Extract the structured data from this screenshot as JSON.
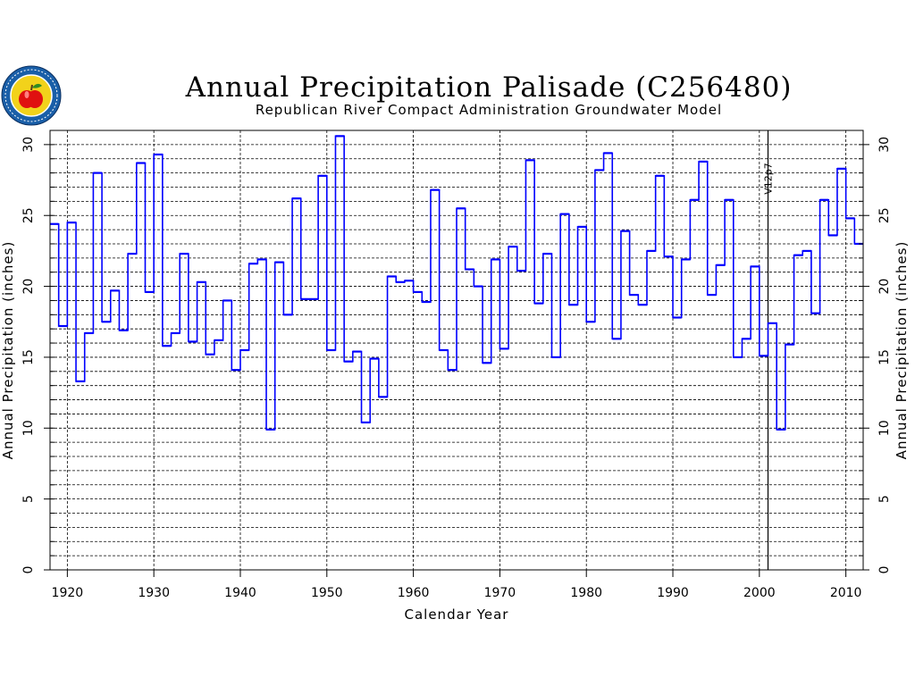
{
  "logo": {
    "icon": "apple-seal-icon",
    "colors": {
      "ring": "#1a5fa8",
      "inner": "#f2d21b",
      "apple": "#e01010",
      "leaf": "#2e8b23"
    }
  },
  "colors": {
    "series": "#0000ff",
    "axis": "#000000",
    "grid": "#000000"
  },
  "chart_data": {
    "type": "line",
    "style": "step",
    "title": "Annual Precipitation Palisade (C256480)",
    "subtitle": "Republican River Compact Administration Groundwater Model",
    "xlabel": "Calendar Year",
    "ylabel": "Annual Precipitation (inches)",
    "ylabel_right": "Annual Precipitation (inches)",
    "xlim": [
      1918,
      2012
    ],
    "ylim": [
      0,
      31
    ],
    "x_ticks": [
      1920,
      1930,
      1940,
      1950,
      1960,
      1970,
      1980,
      1990,
      2000,
      2010
    ],
    "y_ticks": [
      0,
      5,
      10,
      15,
      20,
      25,
      30
    ],
    "y_minor_step": 1,
    "grid": true,
    "marker": {
      "year": 2001,
      "label": "V12p7"
    },
    "series": [
      {
        "x": [
          1918,
          1919,
          1920,
          1921,
          1922,
          1923,
          1924,
          1925,
          1926,
          1927,
          1928,
          1929,
          1930,
          1931,
          1932,
          1933,
          1934,
          1935,
          1936,
          1937,
          1938,
          1939,
          1940,
          1941,
          1942,
          1943,
          1944,
          1945,
          1946,
          1947,
          1948,
          1949,
          1950,
          1951,
          1952,
          1953,
          1954,
          1955,
          1956,
          1957,
          1958,
          1959,
          1960,
          1961,
          1962,
          1963,
          1964,
          1965,
          1966,
          1967,
          1968,
          1969,
          1970,
          1971,
          1972,
          1973,
          1974,
          1975,
          1976,
          1977,
          1978,
          1979,
          1980,
          1981,
          1982,
          1983,
          1984,
          1985,
          1986,
          1987,
          1988,
          1989,
          1990,
          1991,
          1992,
          1993,
          1994,
          1995,
          1996,
          1997,
          1998,
          1999,
          2000,
          2001,
          2002,
          2003,
          2004,
          2005,
          2006,
          2007,
          2008,
          2009,
          2010,
          2011
        ],
        "values": [
          24.4,
          17.2,
          24.5,
          13.3,
          16.7,
          28.0,
          17.5,
          19.7,
          16.9,
          22.3,
          28.7,
          19.6,
          29.3,
          15.8,
          16.7,
          22.3,
          16.1,
          20.3,
          15.2,
          16.2,
          19.0,
          14.1,
          15.5,
          21.6,
          21.9,
          9.9,
          21.7,
          18.0,
          26.2,
          19.1,
          19.1,
          27.8,
          15.5,
          30.6,
          14.7,
          15.4,
          10.4,
          14.9,
          12.2,
          20.7,
          20.3,
          20.4,
          19.6,
          18.9,
          26.8,
          15.5,
          14.1,
          25.5,
          21.2,
          20.0,
          14.6,
          21.9,
          15.6,
          22.8,
          21.1,
          28.9,
          18.8,
          22.3,
          15.0,
          25.1,
          18.7,
          24.2,
          17.5,
          28.2,
          29.4,
          16.3,
          23.9,
          19.4,
          18.7,
          22.5,
          27.8,
          22.1,
          17.8,
          21.9,
          26.1,
          28.8,
          19.4,
          21.5,
          26.1,
          15.0,
          16.3,
          21.4,
          15.1,
          17.4,
          9.9,
          15.9,
          22.2,
          22.5,
          18.1,
          26.1,
          23.6,
          28.3,
          24.8,
          23.0
        ]
      }
    ]
  }
}
